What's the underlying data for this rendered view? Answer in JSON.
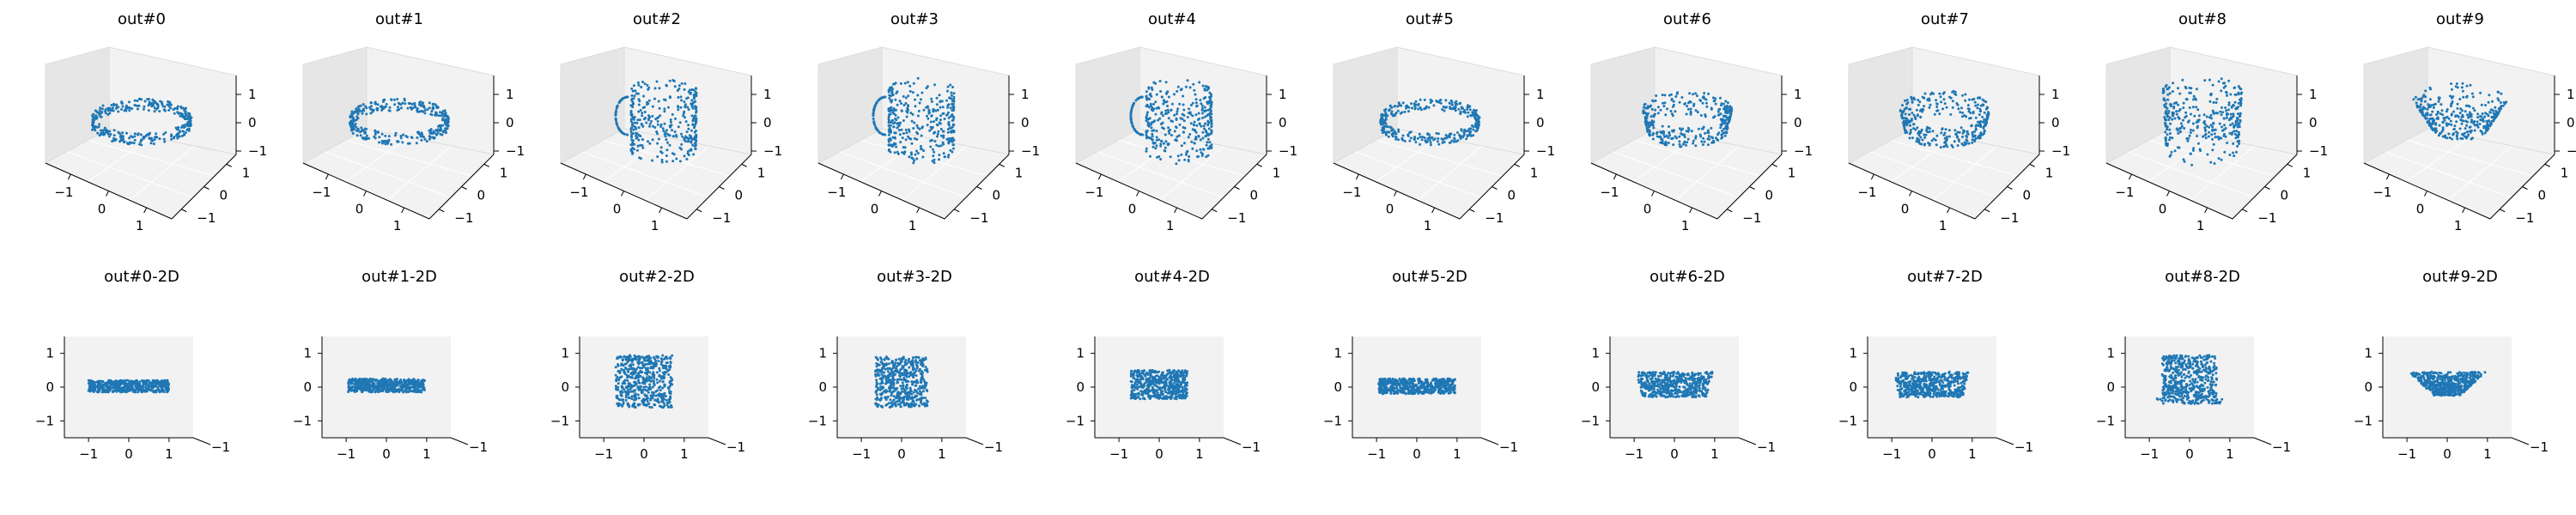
{
  "chart_data": {
    "type": "scatter",
    "point_color": "#1f77b4",
    "pane_color": "#f2f2f2",
    "pane_color_dark": "#e6e6e6",
    "panels_3d": [
      {
        "title": "out#0",
        "shape": "ring",
        "xlim": [
          -1.5,
          1.5
        ],
        "ylim": [
          -1.5,
          1.5
        ],
        "zlim": [
          -1.5,
          1.5
        ],
        "x_ticks": [
          "−1",
          "0",
          "1"
        ],
        "y_ticks": [
          "−1",
          "0",
          "1"
        ],
        "z_ticks": [
          "1",
          "0",
          "−1"
        ]
      },
      {
        "title": "out#1",
        "shape": "ring",
        "xlim": [
          -1.5,
          1.5
        ],
        "ylim": [
          -1.5,
          1.5
        ],
        "zlim": [
          -1.5,
          1.5
        ],
        "x_ticks": [
          "−1",
          "0",
          "1"
        ],
        "y_ticks": [
          "−1",
          "0",
          "1"
        ],
        "z_ticks": [
          "1",
          "0",
          "−1"
        ]
      },
      {
        "title": "out#2",
        "shape": "mug",
        "xlim": [
          -1.5,
          1.5
        ],
        "ylim": [
          -1.5,
          1.5
        ],
        "zlim": [
          -1.5,
          1.5
        ],
        "x_ticks": [
          "−1",
          "0",
          "1"
        ],
        "y_ticks": [
          "−1",
          "0",
          "1"
        ],
        "z_ticks": [
          "1",
          "0",
          "−1"
        ]
      },
      {
        "title": "out#3",
        "shape": "mug",
        "xlim": [
          -1.5,
          1.5
        ],
        "ylim": [
          -1.5,
          1.5
        ],
        "zlim": [
          -1.5,
          1.5
        ],
        "x_ticks": [
          "−1",
          "0",
          "1"
        ],
        "y_ticks": [
          "−1",
          "0",
          "1"
        ],
        "z_ticks": [
          "1",
          "0",
          "−1"
        ]
      },
      {
        "title": "out#4",
        "shape": "mug",
        "xlim": [
          -1.5,
          1.5
        ],
        "ylim": [
          -1.5,
          1.5
        ],
        "zlim": [
          -1.5,
          1.5
        ],
        "x_ticks": [
          "−1",
          "0",
          "1"
        ],
        "y_ticks": [
          "−1",
          "0",
          "1"
        ],
        "z_ticks": [
          "1",
          "0",
          "−1"
        ]
      },
      {
        "title": "out#5",
        "shape": "ring",
        "xlim": [
          -1.5,
          1.5
        ],
        "ylim": [
          -1.5,
          1.5
        ],
        "zlim": [
          -1.5,
          1.5
        ],
        "x_ticks": [
          "−1",
          "0",
          "1"
        ],
        "y_ticks": [
          "−1",
          "0",
          "1"
        ],
        "z_ticks": [
          "1",
          "0",
          "−1"
        ]
      },
      {
        "title": "out#6",
        "shape": "bowl",
        "xlim": [
          -1.5,
          1.5
        ],
        "ylim": [
          -1.5,
          1.5
        ],
        "zlim": [
          -1.5,
          1.5
        ],
        "x_ticks": [
          "−1",
          "0",
          "1"
        ],
        "y_ticks": [
          "−1",
          "0",
          "1"
        ],
        "z_ticks": [
          "1",
          "0",
          "−1"
        ]
      },
      {
        "title": "out#7",
        "shape": "bowl",
        "xlim": [
          -1.5,
          1.5
        ],
        "ylim": [
          -1.5,
          1.5
        ],
        "zlim": [
          -1.5,
          1.5
        ],
        "x_ticks": [
          "−1",
          "0",
          "1"
        ],
        "y_ticks": [
          "−1",
          "0",
          "1"
        ],
        "z_ticks": [
          "1",
          "0",
          "−1"
        ]
      },
      {
        "title": "out#8",
        "shape": "cup",
        "xlim": [
          -1.5,
          1.5
        ],
        "ylim": [
          -1.5,
          1.5
        ],
        "zlim": [
          -1.5,
          1.5
        ],
        "x_ticks": [
          "−1",
          "0",
          "1"
        ],
        "y_ticks": [
          "−1",
          "0",
          "1"
        ],
        "z_ticks": [
          "1",
          "0",
          "−1"
        ]
      },
      {
        "title": "out#9",
        "shape": "cone",
        "xlim": [
          -1.5,
          1.5
        ],
        "ylim": [
          -1.5,
          1.5
        ],
        "zlim": [
          -1.5,
          1.5
        ],
        "x_ticks": [
          "−1",
          "0",
          "1"
        ],
        "y_ticks": [
          "−1",
          "0",
          "1"
        ],
        "z_ticks": [
          "1",
          "0",
          "−1"
        ]
      }
    ],
    "panels_2d": [
      {
        "title": "out#0-2D",
        "shape": "band",
        "x_range": [
          -1.0,
          1.0
        ],
        "z_range": [
          -0.15,
          0.2
        ],
        "xlim": [
          -1.6,
          1.6
        ],
        "zlim": [
          -1.5,
          1.5
        ],
        "x_ticks": [
          "−1",
          "0",
          "1"
        ],
        "z_ticks": [
          "1",
          "0",
          "−1"
        ],
        "depth_tick": "−1"
      },
      {
        "title": "out#1-2D",
        "shape": "band",
        "x_range": [
          -0.95,
          0.95
        ],
        "z_range": [
          -0.15,
          0.25
        ],
        "xlim": [
          -1.6,
          1.6
        ],
        "zlim": [
          -1.5,
          1.5
        ],
        "x_ticks": [
          "−1",
          "0",
          "1"
        ],
        "z_ticks": [
          "1",
          "0",
          "−1"
        ],
        "depth_tick": "−1"
      },
      {
        "title": "out#2-2D",
        "shape": "box",
        "x_range": [
          -0.7,
          0.7
        ],
        "z_range": [
          -0.6,
          0.95
        ],
        "xlim": [
          -1.6,
          1.6
        ],
        "zlim": [
          -1.5,
          1.5
        ],
        "x_ticks": [
          "−1",
          "0",
          "1"
        ],
        "z_ticks": [
          "1",
          "0",
          "−1"
        ],
        "depth_tick": "−1"
      },
      {
        "title": "out#3-2D",
        "shape": "box",
        "x_range": [
          -0.65,
          0.65
        ],
        "z_range": [
          -0.6,
          0.9
        ],
        "xlim": [
          -1.6,
          1.6
        ],
        "zlim": [
          -1.5,
          1.5
        ],
        "x_ticks": [
          "−1",
          "0",
          "1"
        ],
        "z_ticks": [
          "1",
          "0",
          "−1"
        ],
        "depth_tick": "−1"
      },
      {
        "title": "out#4-2D",
        "shape": "box",
        "x_range": [
          -0.7,
          0.7
        ],
        "z_range": [
          -0.35,
          0.5
        ],
        "xlim": [
          -1.6,
          1.6
        ],
        "zlim": [
          -1.5,
          1.5
        ],
        "x_ticks": [
          "−1",
          "0",
          "1"
        ],
        "z_ticks": [
          "1",
          "0",
          "−1"
        ],
        "depth_tick": "−1"
      },
      {
        "title": "out#5-2D",
        "shape": "band",
        "x_range": [
          -0.95,
          0.95
        ],
        "z_range": [
          -0.2,
          0.25
        ],
        "xlim": [
          -1.6,
          1.6
        ],
        "zlim": [
          -1.5,
          1.5
        ],
        "x_ticks": [
          "−1",
          "0",
          "1"
        ],
        "z_ticks": [
          "1",
          "0",
          "−1"
        ],
        "depth_tick": "−1"
      },
      {
        "title": "out#6-2D",
        "shape": "tapered",
        "x_range": [
          -0.95,
          0.95
        ],
        "z_range": [
          -0.3,
          0.45
        ],
        "xlim": [
          -1.6,
          1.6
        ],
        "zlim": [
          -1.5,
          1.5
        ],
        "x_ticks": [
          "−1",
          "0",
          "1"
        ],
        "z_ticks": [
          "1",
          "0",
          "−1"
        ],
        "depth_tick": "−1"
      },
      {
        "title": "out#7-2D",
        "shape": "tapered",
        "x_range": [
          -0.95,
          0.9
        ],
        "z_range": [
          -0.3,
          0.45
        ],
        "xlim": [
          -1.6,
          1.6
        ],
        "zlim": [
          -1.5,
          1.5
        ],
        "x_ticks": [
          "−1",
          "0",
          "1"
        ],
        "z_ticks": [
          "1",
          "0",
          "−1"
        ],
        "depth_tick": "−1"
      },
      {
        "title": "out#8-2D",
        "shape": "cup",
        "x_range": [
          -0.85,
          0.85
        ],
        "z_range": [
          -0.5,
          0.95
        ],
        "xlim": [
          -1.6,
          1.6
        ],
        "zlim": [
          -1.5,
          1.5
        ],
        "x_ticks": [
          "−1",
          "0",
          "1"
        ],
        "z_ticks": [
          "1",
          "0",
          "−1"
        ],
        "depth_tick": "−1"
      },
      {
        "title": "out#9-2D",
        "shape": "cone",
        "x_range": [
          -0.95,
          0.95
        ],
        "z_range": [
          -0.25,
          0.45
        ],
        "xlim": [
          -1.6,
          1.6
        ],
        "zlim": [
          -1.5,
          1.5
        ],
        "x_ticks": [
          "−1",
          "0",
          "1"
        ],
        "z_ticks": [
          "1",
          "0",
          "−1"
        ],
        "depth_tick": "−1"
      }
    ]
  }
}
